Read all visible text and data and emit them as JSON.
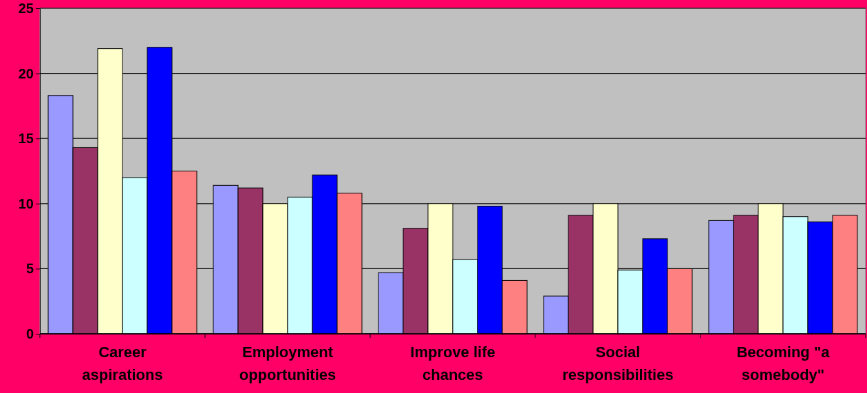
{
  "chart_data": {
    "type": "bar",
    "categories": [
      "Career aspirations",
      "Employment opportunities",
      "Improve life chances",
      "Social responsibilities",
      "Becoming \"a somebody\""
    ],
    "series": [
      {
        "color": "#9999ff",
        "values": [
          18.3,
          11.4,
          4.7,
          2.9,
          8.7
        ]
      },
      {
        "color": "#993366",
        "values": [
          14.3,
          11.2,
          8.1,
          9.1,
          9.1
        ]
      },
      {
        "color": "#ffffcc",
        "values": [
          21.9,
          10,
          10,
          10,
          10
        ]
      },
      {
        "color": "#ccffff",
        "values": [
          12,
          10.5,
          5.7,
          4.9,
          9
        ]
      },
      {
        "color": "#0000ff",
        "values": [
          22,
          12.2,
          9.8,
          7.3,
          8.6
        ]
      },
      {
        "color": "#ff8080",
        "values": [
          12.5,
          10.8,
          4.1,
          5,
          9.1
        ]
      }
    ],
    "ylim": [
      0,
      25
    ],
    "yticks": [
      0,
      5,
      10,
      15,
      20,
      25
    ],
    "grid": "y"
  }
}
